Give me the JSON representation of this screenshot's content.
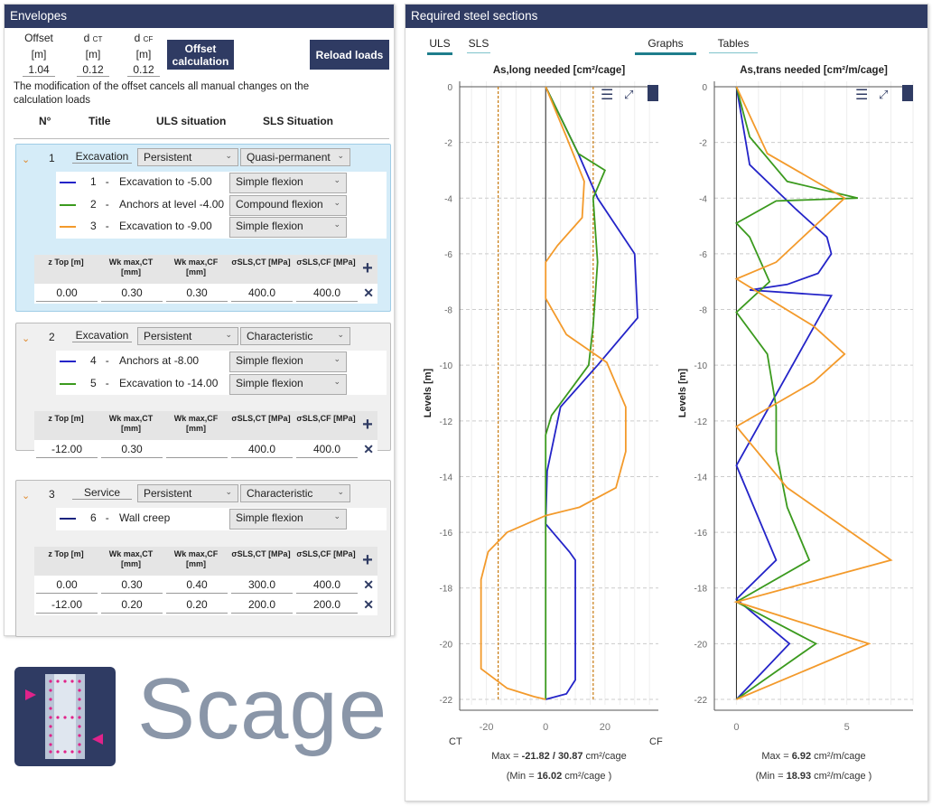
{
  "envelopes": {
    "title": "Envelopes",
    "offset": {
      "label": "Offset",
      "unit": "[m]",
      "value": "1.04"
    },
    "dct": {
      "label": "d",
      "sub": "CT",
      "unit": "[m]",
      "value": "0.12"
    },
    "dcf": {
      "label": "d",
      "sub": "CF",
      "unit": "[m]",
      "value": "0.12"
    },
    "offset_btn": "Offset calculation",
    "reload_btn": "Reload loads",
    "note": "The modification of the offset cancels all manual changes on the calculation loads",
    "headers": {
      "n": "N°",
      "title": "Title",
      "uls": "ULS situation",
      "sls": "SLS Situation"
    },
    "table_headers": [
      "z Top [m]",
      "Wk max,CT [mm]",
      "Wk max,CF [mm]",
      "σSLS,CT [MPa]",
      "σSLS,CF [MPa]"
    ],
    "groups": [
      {
        "n": "1",
        "title": "Excavation",
        "uls": "Persistent",
        "sls": "Quasi-permanent",
        "cases": [
          {
            "n": "1",
            "title": "Excavation to -5.00",
            "type": "Simple flexion",
            "color": "#2424c8"
          },
          {
            "n": "2",
            "title": "Anchors at level -4.00",
            "type": "Compound flexion",
            "color": "#3b9a1e"
          },
          {
            "n": "3",
            "title": "Excavation to -9.00",
            "type": "Simple flexion",
            "color": "#f39a2b"
          }
        ],
        "rows": [
          [
            "0.00",
            "0.30",
            "0.30",
            "400.0",
            "400.0"
          ]
        ]
      },
      {
        "n": "2",
        "title": "Excavation",
        "uls": "Persistent",
        "sls": "Characteristic",
        "cases": [
          {
            "n": "4",
            "title": "Anchors at -8.00",
            "type": "Simple flexion",
            "color": "#2424c8"
          },
          {
            "n": "5",
            "title": "Excavation to -14.00",
            "type": "Simple flexion",
            "color": "#3b9a1e"
          }
        ],
        "rows": [
          [
            "-12.00",
            "0.30",
            "",
            "400.0",
            "400.0"
          ]
        ]
      },
      {
        "n": "3",
        "title": "Service",
        "uls": "Persistent",
        "sls": "Characteristic",
        "cases": [
          {
            "n": "6",
            "title": "Wall creep",
            "type": "Simple flexion",
            "color": "#1a237e"
          }
        ],
        "rows": [
          [
            "0.00",
            "0.30",
            "0.40",
            "300.0",
            "400.0"
          ],
          [
            "-12.00",
            "0.20",
            "0.20",
            "200.0",
            "200.0"
          ]
        ]
      }
    ]
  },
  "logo": {
    "text": "Scage"
  },
  "steel": {
    "title": "Required steel sections",
    "tabs": {
      "uls": "ULS",
      "sls": "SLS",
      "graphs": "Graphs",
      "tables": "Tables"
    },
    "accent": "#1e7e8c"
  },
  "chart_data": [
    {
      "type": "line",
      "title": "As,long needed [cm²/cage]",
      "ylabel": "Levels [m]",
      "xlabel_left": "CT",
      "xlabel_right": "CF",
      "xlim": [
        -29,
        38
      ],
      "ylim": [
        -22,
        0
      ],
      "xticks": [
        -20,
        0,
        20
      ],
      "yticks": [
        0,
        -2,
        -4,
        -6,
        -8,
        -10,
        -12,
        -14,
        -16,
        -18,
        -20,
        -22
      ],
      "min_lines": [
        -16.02,
        16.02
      ],
      "max_text": {
        "prefix": "Max = ",
        "v1": "-21.82",
        "sep": " / ",
        "v2": "30.87",
        "unit": " cm²/cage"
      },
      "min_text": {
        "prefix": "(Min = ",
        "v": "16.02",
        "unit": " cm²/cage )"
      },
      "series": [
        {
          "name": "1",
          "color": "#2424c8",
          "points": [
            [
              0,
              0
            ],
            [
              11,
              -2.4
            ],
            [
              17.5,
              -4
            ],
            [
              30,
              -6
            ],
            [
              31,
              -8.3
            ],
            [
              17.5,
              -10
            ],
            [
              5,
              -11.5
            ],
            [
              0.5,
              -13.8
            ],
            [
              0,
              -15.7
            ],
            [
              8,
              -16.7
            ],
            [
              10,
              -17
            ],
            [
              10,
              -21.3
            ],
            [
              7,
              -21.8
            ],
            [
              0,
              -22
            ]
          ]
        },
        {
          "name": "2",
          "color": "#3b9a1e",
          "points": [
            [
              0,
              0
            ],
            [
              11,
              -2.4
            ],
            [
              20,
              -3
            ],
            [
              16,
              -4
            ],
            [
              17.5,
              -6.3
            ],
            [
              16,
              -8.6
            ],
            [
              14.5,
              -10
            ],
            [
              2,
              -11.8
            ],
            [
              0,
              -12.5
            ],
            [
              0,
              -22
            ]
          ]
        },
        {
          "name": "3",
          "color": "#f39a2b",
          "points": [
            [
              0,
              0
            ],
            [
              7,
              -1.8
            ],
            [
              13,
              -3.4
            ],
            [
              12.3,
              -4.7
            ],
            [
              4,
              -5.7
            ],
            [
              0,
              -6.3
            ],
            [
              0,
              -7.6
            ],
            [
              7,
              -8.9
            ],
            [
              20.6,
              -9.9
            ],
            [
              27,
              -11.5
            ],
            [
              27,
              -13.1
            ],
            [
              23.7,
              -14.4
            ],
            [
              11.4,
              -15.1
            ],
            [
              0,
              -15.4
            ],
            [
              -13,
              -16
            ],
            [
              -19.4,
              -16.7
            ],
            [
              -21.8,
              -17.7
            ],
            [
              -21.8,
              -20.9
            ],
            [
              -13,
              -21.6
            ],
            [
              -4,
              -21.9
            ],
            [
              0,
              -22
            ]
          ]
        }
      ]
    },
    {
      "type": "line",
      "title": "As,trans needed [cm²/m/cage]",
      "ylabel": "Levels [m]",
      "xlim": [
        -1,
        8
      ],
      "ylim": [
        -22,
        0
      ],
      "xticks": [
        0,
        5
      ],
      "yticks": [
        0,
        -2,
        -4,
        -6,
        -8,
        -10,
        -12,
        -14,
        -16,
        -18,
        -20,
        -22
      ],
      "max_text": {
        "prefix": "Max = ",
        "v1": "6.92",
        "unit": " cm²/m/cage"
      },
      "min_text": {
        "prefix": "(Min = ",
        "v": "18.93",
        "unit": " cm²/m/cage )"
      },
      "series": [
        {
          "name": "1",
          "color": "#2424c8",
          "points": [
            [
              0,
              0
            ],
            [
              0.6,
              -2.8
            ],
            [
              2.7,
              -4.4
            ],
            [
              4.1,
              -5.4
            ],
            [
              4.3,
              -6
            ],
            [
              3.7,
              -6.7
            ],
            [
              2.3,
              -7.1
            ],
            [
              0.6,
              -7.3
            ],
            [
              4.3,
              -7.5
            ],
            [
              0,
              -13.6
            ],
            [
              1.8,
              -17
            ],
            [
              0,
              -18.4
            ],
            [
              2.4,
              -20
            ],
            [
              0,
              -22
            ]
          ]
        },
        {
          "name": "2",
          "color": "#3b9a1e",
          "points": [
            [
              0,
              0
            ],
            [
              0.6,
              -1.8
            ],
            [
              2.3,
              -3.4
            ],
            [
              5.5,
              -4
            ],
            [
              1.8,
              -4.1
            ],
            [
              0,
              -4.9
            ],
            [
              0.6,
              -5.4
            ],
            [
              1.5,
              -7
            ],
            [
              0,
              -8.1
            ],
            [
              1.4,
              -9.6
            ],
            [
              1.8,
              -11.5
            ],
            [
              1.8,
              -13.1
            ],
            [
              2.3,
              -15.1
            ],
            [
              3.3,
              -17
            ],
            [
              0,
              -18.5
            ],
            [
              3.6,
              -20
            ],
            [
              0,
              -22
            ]
          ]
        },
        {
          "name": "3",
          "color": "#f39a2b",
          "points": [
            [
              0,
              0
            ],
            [
              1.4,
              -2.4
            ],
            [
              4.9,
              -4
            ],
            [
              1.8,
              -6.3
            ],
            [
              0,
              -6.9
            ],
            [
              3.5,
              -8.6
            ],
            [
              4.9,
              -9.6
            ],
            [
              3.5,
              -10.6
            ],
            [
              0,
              -12.2
            ],
            [
              2.3,
              -14.4
            ],
            [
              7,
              -17
            ],
            [
              0,
              -18.5
            ],
            [
              6,
              -20
            ],
            [
              0,
              -22
            ]
          ]
        }
      ]
    }
  ]
}
